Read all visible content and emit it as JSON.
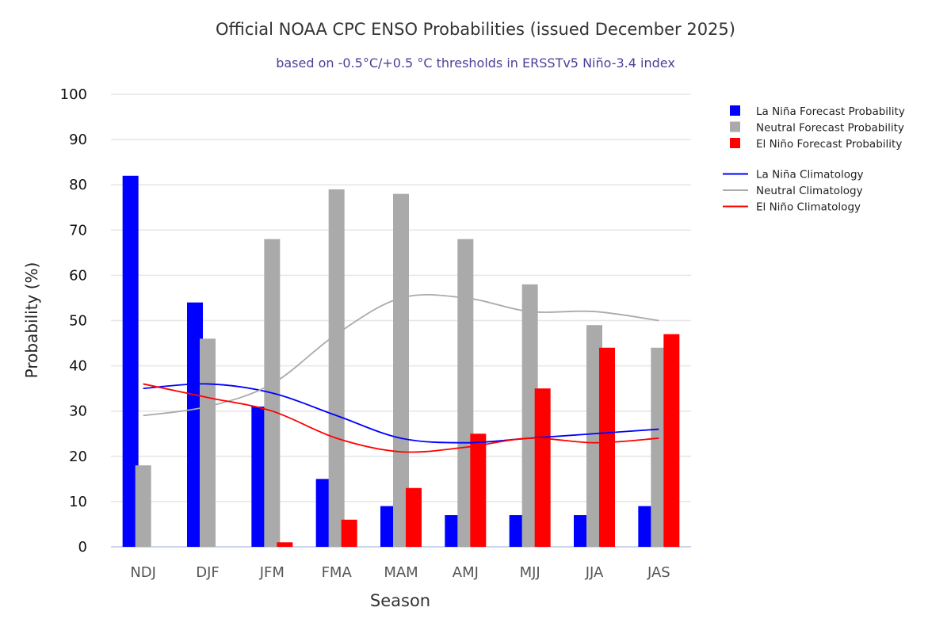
{
  "chart_data": {
    "type": "bar",
    "title": "Official NOAA CPC ENSO Probabilities (issued December 2025)",
    "subtitle": "based on -0.5°C/+0.5 °C thresholds in ERSSTv5 Niño-3.4 index",
    "xlabel": "Season",
    "ylabel": "Probability (%)",
    "ylim": [
      0,
      100
    ],
    "yticks": [
      0,
      10,
      20,
      30,
      40,
      50,
      60,
      70,
      80,
      90,
      100
    ],
    "grid": true,
    "legend": "right",
    "categories": [
      "NDJ",
      "DJF",
      "JFM",
      "FMA",
      "MAM",
      "AMJ",
      "MJJ",
      "JJA",
      "JAS"
    ],
    "series": [
      {
        "name": "La Niña Forecast Probability",
        "kind": "bar",
        "color": "#0000ff",
        "values": [
          82,
          54,
          31,
          15,
          9,
          7,
          7,
          7,
          9
        ]
      },
      {
        "name": "Neutral Forecast Probability",
        "kind": "bar",
        "color": "#aaaaaa",
        "values": [
          18,
          46,
          68,
          79,
          78,
          68,
          58,
          49,
          44
        ]
      },
      {
        "name": "El Niño Forecast Probability",
        "kind": "bar",
        "color": "#ff0000",
        "values": [
          0,
          0,
          1,
          6,
          13,
          25,
          35,
          44,
          47
        ]
      },
      {
        "name": "La Niña Climatology",
        "kind": "line",
        "color": "#0000ff",
        "values": [
          35,
          36,
          34,
          29,
          24,
          23,
          24,
          25,
          26
        ]
      },
      {
        "name": "Neutral Climatology",
        "kind": "line",
        "color": "#aaaaaa",
        "values": [
          29,
          31,
          36,
          47,
          55,
          55,
          52,
          52,
          50
        ]
      },
      {
        "name": "El Niño Climatology",
        "kind": "line",
        "color": "#ff0000",
        "values": [
          36,
          33,
          30,
          24,
          21,
          22,
          24,
          23,
          24
        ]
      }
    ]
  }
}
